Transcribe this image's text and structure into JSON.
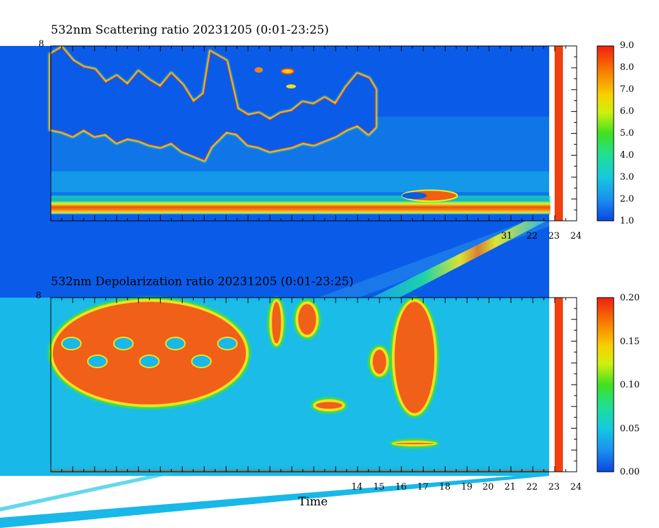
{
  "chart_data": [
    {
      "type": "heatmap",
      "title": "532nm Scattering ratio  20231205 (0:01-23:25)",
      "x_label_fragment": "31",
      "xticks": [
        "22",
        "23",
        "24"
      ],
      "xlim": [
        0,
        24
      ],
      "colorbar": {
        "ticks": [
          "1.0",
          "2.0",
          "3.0",
          "4.0",
          "5.0",
          "6.0",
          "7.0",
          "8.0",
          "9.0"
        ],
        "range": [
          1.0,
          9.0
        ]
      },
      "background_color": "#0a5ce8",
      "upper_cloud": {
        "x": [
          0.0,
          0.5,
          1.0,
          1.5,
          2.0,
          2.5,
          3.0,
          3.5,
          4.0,
          4.5,
          5.0,
          5.5,
          6.0,
          6.5,
          7.0,
          7.3,
          8.0,
          8.5,
          9.0,
          9.5,
          10.0,
          10.5,
          11.0,
          11.5,
          12.0,
          12.5,
          13.0,
          13.5,
          14.0,
          14.5,
          14.8
        ],
        "top_km": [
          7.6,
          7.9,
          7.3,
          7.0,
          6.9,
          6.3,
          6.6,
          6.2,
          6.8,
          6.4,
          6.1,
          6.7,
          6.2,
          5.4,
          5.8,
          7.7,
          7.3,
          5.1,
          4.8,
          4.9,
          4.6,
          4.9,
          5.0,
          5.4,
          5.3,
          5.6,
          5.3,
          6.1,
          6.7,
          6.5,
          6.0
        ],
        "base_km": [
          4.2,
          4.1,
          3.9,
          4.2,
          3.9,
          4.0,
          3.6,
          3.8,
          3.7,
          3.5,
          3.4,
          3.6,
          3.2,
          3.0,
          2.8,
          3.4,
          4.1,
          4.0,
          3.5,
          3.4,
          3.2,
          3.3,
          3.4,
          3.6,
          3.5,
          3.7,
          3.9,
          4.2,
          4.4,
          4.0,
          4.3
        ]
      },
      "boundary_layer": {
        "x": [
          0,
          22.8
        ],
        "top_km": 0.9,
        "base_km": 0.3,
        "peak_value": 9.0
      },
      "missing_bar": {
        "x": [
          23.0,
          23.4
        ],
        "value": 9.0
      }
    },
    {
      "type": "heatmap",
      "title": "532nm Depolarization ratio  20231205 (0:01-23:25)",
      "xticks": [
        "14",
        "15",
        "16",
        "17",
        "18",
        "19",
        "20",
        "21",
        "22",
        "23",
        "24"
      ],
      "xlim": [
        0,
        24
      ],
      "xlabel": "Time",
      "colorbar": {
        "ticks": [
          "0.00",
          "0.05",
          "0.10",
          "0.15",
          "0.20"
        ],
        "range": [
          0.0,
          0.2
        ]
      },
      "background_color": "#18b8e8",
      "high_regions": [
        {
          "x": [
            0.0,
            9.0
          ],
          "top_km": 7.9,
          "base_km": 3.0,
          "value": 0.19
        },
        {
          "x": [
            10.0,
            10.6
          ],
          "top_km": 7.9,
          "base_km": 5.8,
          "value": 0.17
        },
        {
          "x": [
            11.2,
            12.2
          ],
          "top_km": 7.8,
          "base_km": 6.2,
          "value": 0.16
        },
        {
          "x": [
            14.6,
            15.4
          ],
          "top_km": 5.7,
          "base_km": 4.4,
          "value": 0.14
        },
        {
          "x": [
            12.0,
            13.4
          ],
          "top_km": 3.3,
          "base_km": 2.8,
          "value": 0.15
        },
        {
          "x": [
            15.6,
            17.6
          ],
          "top_km": 7.9,
          "base_km": 2.6,
          "value": 0.18
        },
        {
          "x": [
            15.6,
            17.6
          ],
          "top_km": 1.4,
          "base_km": 1.2,
          "value": 0.16
        }
      ],
      "missing_bar": {
        "x": [
          23.0,
          23.4
        ],
        "value": 0.2
      }
    }
  ]
}
